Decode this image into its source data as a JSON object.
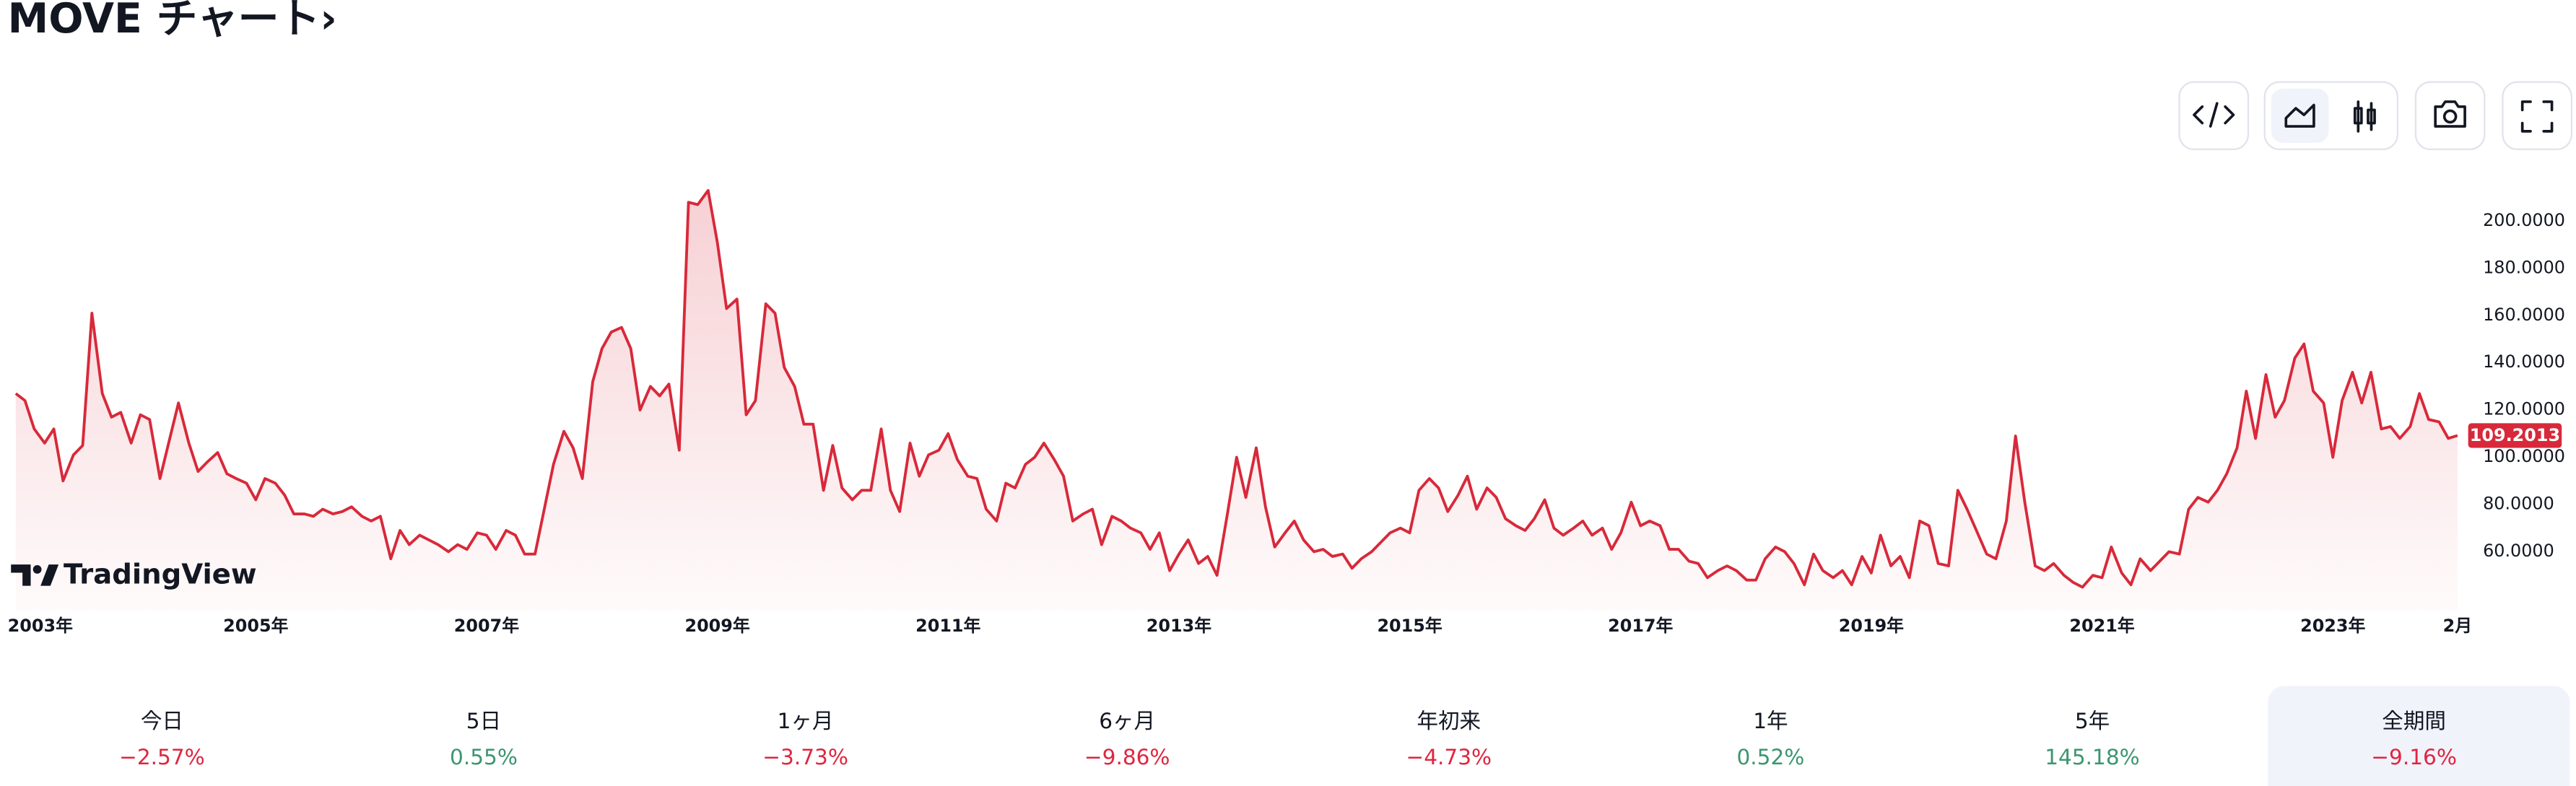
{
  "chart_data": {
    "type": "line",
    "title": "MOVE チャート›",
    "color": "#d8293a",
    "brand": "TradingView",
    "x": [
      2002.92,
      2003,
      2003.08,
      2003.17,
      2003.25,
      2003.33,
      2003.42,
      2003.5,
      2003.58,
      2003.67,
      2003.75,
      2003.83,
      2003.92,
      2004,
      2004.08,
      2004.17,
      2004.25,
      2004.33,
      2004.42,
      2004.5,
      2004.58,
      2004.67,
      2004.75,
      2004.83,
      2004.92,
      2005,
      2005.08,
      2005.17,
      2005.25,
      2005.33,
      2005.42,
      2005.5,
      2005.58,
      2005.67,
      2005.75,
      2005.83,
      2005.92,
      2006,
      2006.08,
      2006.17,
      2006.25,
      2006.33,
      2006.42,
      2006.5,
      2006.58,
      2006.67,
      2006.75,
      2006.83,
      2006.92,
      2007,
      2007.08,
      2007.17,
      2007.25,
      2007.33,
      2007.42,
      2007.5,
      2007.58,
      2007.67,
      2007.75,
      2007.83,
      2007.92,
      2008,
      2008.08,
      2008.17,
      2008.25,
      2008.33,
      2008.42,
      2008.5,
      2008.58,
      2008.67,
      2008.75,
      2008.83,
      2008.92,
      2009,
      2009.08,
      2009.17,
      2009.25,
      2009.33,
      2009.42,
      2009.5,
      2009.58,
      2009.67,
      2009.75,
      2009.83,
      2009.92,
      2010,
      2010.08,
      2010.17,
      2010.25,
      2010.33,
      2010.42,
      2010.5,
      2010.58,
      2010.67,
      2010.75,
      2010.83,
      2010.92,
      2011,
      2011.08,
      2011.17,
      2011.25,
      2011.33,
      2011.42,
      2011.5,
      2011.58,
      2011.67,
      2011.75,
      2011.83,
      2011.92,
      2012,
      2012.08,
      2012.17,
      2012.25,
      2012.33,
      2012.42,
      2012.5,
      2012.58,
      2012.67,
      2012.75,
      2012.83,
      2012.92,
      2013,
      2013.08,
      2013.17,
      2013.25,
      2013.33,
      2013.42,
      2013.5,
      2013.58,
      2013.67,
      2013.75,
      2013.83,
      2013.92,
      2014,
      2014.08,
      2014.17,
      2014.25,
      2014.33,
      2014.42,
      2014.5,
      2014.58,
      2014.67,
      2014.75,
      2014.83,
      2014.92,
      2015,
      2015.08,
      2015.17,
      2015.25,
      2015.33,
      2015.42,
      2015.5,
      2015.58,
      2015.67,
      2015.75,
      2015.83,
      2015.92,
      2016,
      2016.08,
      2016.17,
      2016.25,
      2016.33,
      2016.42,
      2016.5,
      2016.58,
      2016.67,
      2016.75,
      2016.83,
      2016.92,
      2017,
      2017.08,
      2017.17,
      2017.25,
      2017.33,
      2017.42,
      2017.5,
      2017.58,
      2017.67,
      2017.75,
      2017.83,
      2017.92,
      2018,
      2018.08,
      2018.17,
      2018.25,
      2018.33,
      2018.42,
      2018.5,
      2018.58,
      2018.67,
      2018.75,
      2018.83,
      2018.92,
      2019,
      2019.08,
      2019.17,
      2019.25,
      2019.33,
      2019.42,
      2019.5,
      2019.58,
      2019.67,
      2019.75,
      2019.83,
      2019.92,
      2020,
      2020.08,
      2020.17,
      2020.25,
      2020.33,
      2020.42,
      2020.5,
      2020.58,
      2020.67,
      2020.75,
      2020.83,
      2020.92,
      2021,
      2021.08,
      2021.17,
      2021.25,
      2021.33,
      2021.42,
      2021.5,
      2021.58,
      2021.67,
      2021.75,
      2021.83,
      2021.92,
      2022,
      2022.08,
      2022.17,
      2022.25,
      2022.33,
      2022.42,
      2022.5,
      2022.58,
      2022.67,
      2022.75,
      2022.83,
      2022.92,
      2023,
      2023.08,
      2023.17,
      2023.25,
      2023.33,
      2023.42,
      2023.5,
      2023.58,
      2023.67,
      2023.75,
      2023.83,
      2023.92,
      2024,
      2024.08
    ],
    "values": [
      127,
      124,
      112,
      106,
      112,
      90,
      101,
      105,
      161,
      127,
      117,
      119,
      106,
      118,
      116,
      91,
      107,
      123,
      106,
      94,
      98,
      102,
      93,
      91,
      89,
      82,
      91,
      89,
      84,
      76,
      76,
      75,
      78,
      76,
      77,
      79,
      75,
      73,
      75,
      57,
      69,
      63,
      67,
      65,
      63,
      60,
      63,
      61,
      68,
      67,
      61,
      69,
      67,
      59,
      59,
      78,
      97,
      111,
      104,
      91,
      132,
      146,
      153,
      155,
      146,
      120,
      130,
      126,
      131,
      103,
      208,
      207,
      213,
      191,
      163,
      167,
      118,
      124,
      165,
      161,
      138,
      130,
      114,
      114,
      86,
      105,
      87,
      82,
      86,
      86,
      112,
      86,
      77,
      106,
      92,
      101,
      103,
      110,
      99,
      92,
      91,
      78,
      73,
      89,
      87,
      97,
      100,
      106,
      99,
      92,
      73,
      76,
      78,
      63,
      75,
      73,
      70,
      68,
      61,
      68,
      52,
      59,
      65,
      55,
      58,
      50,
      76,
      100,
      83,
      104,
      79,
      62,
      68,
      73,
      65,
      60,
      61,
      58,
      59,
      53,
      57,
      60,
      64,
      68,
      70,
      68,
      86,
      91,
      87,
      77,
      84,
      92,
      78,
      87,
      83,
      74,
      71,
      69,
      74,
      82,
      70,
      67,
      70,
      73,
      67,
      70,
      61,
      68,
      81,
      71,
      73,
      71,
      61,
      61,
      56,
      55,
      49,
      52,
      54,
      52,
      48,
      48,
      57,
      62,
      60,
      55,
      46,
      59,
      52,
      49,
      52,
      46,
      58,
      51,
      67,
      54,
      58,
      49,
      73,
      71,
      55,
      54,
      86,
      78,
      68,
      59,
      57,
      73,
      109,
      81,
      54,
      52,
      55,
      50,
      47,
      45,
      50,
      49,
      62,
      51,
      46,
      57,
      52,
      56,
      60,
      59,
      78,
      83,
      81,
      86,
      93,
      104,
      128,
      108,
      135,
      117,
      124,
      142,
      148,
      128,
      123,
      100,
      124,
      136,
      123,
      136,
      112,
      113,
      108,
      113,
      127,
      116,
      115,
      108,
      109.2013
    ],
    "xlim": [
      2002.92,
      2024.08
    ],
    "xticks": [
      {
        "value": 2003,
        "label": "2003年"
      },
      {
        "value": 2005,
        "label": "2005年"
      },
      {
        "value": 2007,
        "label": "2007年"
      },
      {
        "value": 2009,
        "label": "2009年"
      },
      {
        "value": 2011,
        "label": "2011年"
      },
      {
        "value": 2013,
        "label": "2013年"
      },
      {
        "value": 2015,
        "label": "2015年"
      },
      {
        "value": 2017,
        "label": "2017年"
      },
      {
        "value": 2019,
        "label": "2019年"
      },
      {
        "value": 2021,
        "label": "2021年"
      },
      {
        "value": 2023,
        "label": "2023年"
      },
      {
        "value": 2024.08,
        "label": "2月"
      }
    ],
    "ylim": [
      40,
      220
    ],
    "yticks": [
      {
        "value": 60,
        "label": "60.0000"
      },
      {
        "value": 80,
        "label": "80.0000"
      },
      {
        "value": 100,
        "label": "100.0000"
      },
      {
        "value": 120,
        "label": "120.0000"
      },
      {
        "value": 140,
        "label": "140.0000"
      },
      {
        "value": 160,
        "label": "160.0000"
      },
      {
        "value": 180,
        "label": "180.0000"
      },
      {
        "value": 200,
        "label": "200.0000"
      }
    ],
    "grid": false
  },
  "periods": [
    {
      "label": "今日",
      "change": "−2.57%"
    },
    {
      "label": "5日",
      "change": "0.55%"
    },
    {
      "label": "1ヶ月",
      "change": "−3.73%"
    },
    {
      "label": "6ヶ月",
      "change": "−9.86%"
    },
    {
      "label": "年初来",
      "change": "−4.73%"
    },
    {
      "label": "1年",
      "change": "0.52%"
    },
    {
      "label": "5年",
      "change": "145.18%"
    },
    {
      "label": "全期間",
      "change": "−9.16%"
    }
  ],
  "active_period": 7
}
